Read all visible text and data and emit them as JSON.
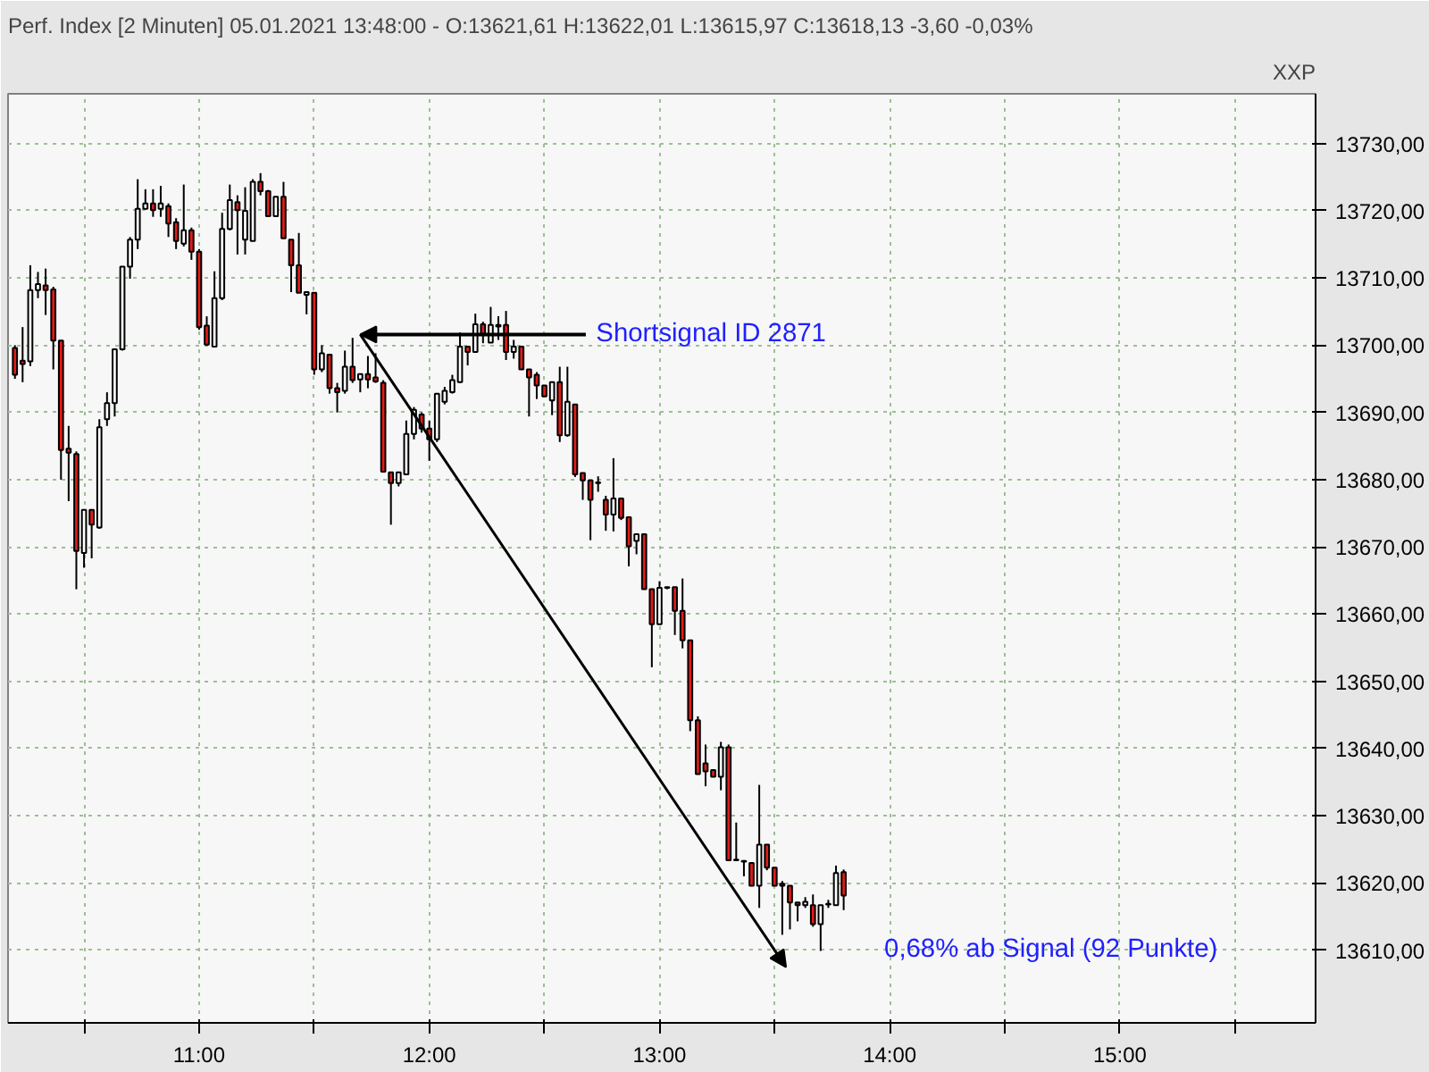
{
  "chart_data": {
    "type": "candlestick",
    "title": "Perf. Index [2 Minuten] 05.01.2021 13:48:00 - O:13621,61 H:13622,01 L:13615,97 C:13618,13 -3,60 -0,03%",
    "ylabel": "XXP",
    "x": [
      10.2,
      10.2333,
      10.2667,
      10.3,
      10.3333,
      10.3667,
      10.4,
      10.4333,
      10.4667,
      10.5,
      10.5333,
      10.5667,
      10.6,
      10.6333,
      10.6667,
      10.7,
      10.7333,
      10.7667,
      10.8,
      10.8333,
      10.8667,
      10.9,
      10.9333,
      10.9667,
      11.0,
      11.0333,
      11.0667,
      11.1,
      11.1333,
      11.1667,
      11.2,
      11.2333,
      11.2667,
      11.3,
      11.3333,
      11.3667,
      11.4,
      11.4333,
      11.4667,
      11.5,
      11.5333,
      11.5667,
      11.6,
      11.6333,
      11.6667,
      11.7,
      11.7333,
      11.7667,
      11.8,
      11.8333,
      11.8667,
      11.9,
      11.9333,
      11.9667,
      12.0,
      12.0333,
      12.0667,
      12.1,
      12.1333,
      12.1667,
      12.2,
      12.2333,
      12.2667,
      12.3,
      12.3333,
      12.3667,
      12.4,
      12.4333,
      12.4667,
      12.5,
      12.5333,
      12.5667,
      12.6,
      12.6333,
      12.6667,
      12.7,
      12.7333,
      12.7667,
      12.8,
      12.8333,
      12.8667,
      12.9,
      12.9333,
      12.9667,
      13.0,
      13.0333,
      13.0667,
      13.1,
      13.1333,
      13.1667,
      13.2,
      13.2333,
      13.2667,
      13.3,
      13.3333,
      13.3667,
      13.4,
      13.4333,
      13.4667,
      13.5,
      13.5333,
      13.5667,
      13.6,
      13.6333,
      13.6667,
      13.7,
      13.7333,
      13.7667,
      13.8
    ],
    "ohlc": [
      [
        13699.6,
        13700.0,
        13695.0,
        13695.6
      ],
      [
        13697.7,
        13702.7,
        13694.5,
        13697.2
      ],
      [
        13697.6,
        13711.9,
        13696.9,
        13708.2
      ],
      [
        13708.2,
        13710.9,
        13707.0,
        13709.1
      ],
      [
        13708.9,
        13711.4,
        13704.5,
        13708.2
      ],
      [
        13708.3,
        13708.7,
        13696.4,
        13700.7
      ],
      [
        13700.7,
        13700.7,
        13680.0,
        13684.4
      ],
      [
        13684.6,
        13688.0,
        13676.8,
        13684.0
      ],
      [
        13683.8,
        13684.2,
        13663.7,
        13669.4
      ],
      [
        13669.1,
        13675.5,
        13666.9,
        13675.5
      ],
      [
        13675.5,
        13675.5,
        13668.3,
        13673.3
      ],
      [
        13672.9,
        13689.0,
        13672.7,
        13687.8
      ],
      [
        13689.0,
        13693.0,
        13688.0,
        13691.4
      ],
      [
        13691.4,
        13699.4,
        13689.4,
        13699.4
      ],
      [
        13699.4,
        13711.7,
        13699.2,
        13711.7
      ],
      [
        13711.7,
        13716.1,
        13709.9,
        13715.7
      ],
      [
        13715.7,
        13724.7,
        13714.3,
        13720.3
      ],
      [
        13720.3,
        13723.2,
        13720.3,
        13721.1
      ],
      [
        13721.1,
        13723.2,
        13719.1,
        13720.1
      ],
      [
        13720.3,
        13723.7,
        13719.1,
        13721.1
      ],
      [
        13720.7,
        13721.1,
        13716.1,
        13718.1
      ],
      [
        13718.3,
        13718.9,
        13714.3,
        13715.5
      ],
      [
        13715.1,
        13723.9,
        13714.7,
        13717.1
      ],
      [
        13717.1,
        13717.5,
        13712.7,
        13713.9
      ],
      [
        13713.9,
        13714.3,
        13702.3,
        13702.7
      ],
      [
        13702.9,
        13704.3,
        13699.9,
        13700.1
      ],
      [
        13699.8,
        13711.0,
        13699.8,
        13707.0
      ],
      [
        13707.0,
        13719.7,
        13706.7,
        13717.3
      ],
      [
        13717.3,
        13723.9,
        13717.1,
        13721.6
      ],
      [
        13721.3,
        13722.3,
        13713.5,
        13720.1
      ],
      [
        13715.7,
        13723.5,
        13713.5,
        13720.0
      ],
      [
        13715.5,
        13724.7,
        13715.5,
        13724.3
      ],
      [
        13724.3,
        13725.6,
        13722.3,
        13722.9
      ],
      [
        13722.9,
        13723.1,
        13719.1,
        13719.2
      ],
      [
        13719.2,
        13722.1,
        13719.1,
        13722.1
      ],
      [
        13722.1,
        13724.3,
        13715.9,
        13715.9
      ],
      [
        13715.7,
        13715.7,
        13707.9,
        13711.9
      ],
      [
        13711.9,
        13716.7,
        13707.8,
        13707.8
      ],
      [
        13707.5,
        13707.9,
        13704.6,
        13707.9
      ],
      [
        13707.8,
        13707.9,
        13695.6,
        13696.4
      ],
      [
        13696.4,
        13700.0,
        13696.0,
        13698.8
      ],
      [
        13698.6,
        13698.6,
        13692.8,
        13693.6
      ],
      [
        13693.6,
        13694.4,
        13690.0,
        13693.0
      ],
      [
        13693.2,
        13699.2,
        13692.8,
        13696.8
      ],
      [
        13696.8,
        13701.1,
        13694.4,
        13694.8
      ],
      [
        13694.9,
        13695.7,
        13693.0,
        13695.7
      ],
      [
        13695.7,
        13698.4,
        13693.6,
        13694.9
      ],
      [
        13695.2,
        13698.8,
        13694.4,
        13694.6
      ],
      [
        13694.4,
        13694.8,
        13681.2,
        13681.2
      ],
      [
        13681.1,
        13681.1,
        13673.3,
        13679.5
      ],
      [
        13679.5,
        13681.1,
        13679.0,
        13681.1
      ],
      [
        13680.8,
        13688.8,
        13680.8,
        13686.8
      ],
      [
        13686.8,
        13690.8,
        13686.0,
        13690.4
      ],
      [
        13689.7,
        13690.0,
        13687.0,
        13687.6
      ],
      [
        13687.6,
        13688.8,
        13682.8,
        13686.0
      ],
      [
        13686.0,
        13692.8,
        13685.6,
        13692.8
      ],
      [
        13691.6,
        13693.8,
        13691.2,
        13693.2
      ],
      [
        13693.0,
        13695.6,
        13692.8,
        13694.8
      ],
      [
        13694.5,
        13701.9,
        13694.4,
        13699.8
      ],
      [
        13699.8,
        13699.8,
        13697.0,
        13699.0
      ],
      [
        13699.0,
        13704.7,
        13699.0,
        13703.1
      ],
      [
        13703.1,
        13703.5,
        13700.3,
        13701.7
      ],
      [
        13700.4,
        13705.7,
        13700.4,
        13703.0
      ],
      [
        13702.8,
        13704.3,
        13700.8,
        13703.0
      ],
      [
        13703.0,
        13705.1,
        13697.8,
        13699.0
      ],
      [
        13699.0,
        13700.8,
        13698.0,
        13699.8
      ],
      [
        13699.8,
        13699.8,
        13696.4,
        13696.4
      ],
      [
        13696.4,
        13696.4,
        13689.4,
        13695.2
      ],
      [
        13695.6,
        13696.0,
        13692.0,
        13694.0
      ],
      [
        13694.0,
        13694.0,
        13692.4,
        13692.4
      ],
      [
        13691.8,
        13694.5,
        13689.6,
        13694.5
      ],
      [
        13694.5,
        13696.8,
        13685.6,
        13686.6
      ],
      [
        13686.6,
        13696.8,
        13686.4,
        13691.6
      ],
      [
        13691.2,
        13691.2,
        13680.4,
        13680.8
      ],
      [
        13681.0,
        13681.0,
        13677.0,
        13679.9
      ],
      [
        13679.9,
        13679.9,
        13671.0,
        13677.0
      ],
      [
        13679.5,
        13680.5,
        13678.2,
        13679.6
      ],
      [
        13677.0,
        13677.6,
        13672.4,
        13674.8
      ],
      [
        13674.8,
        13683.2,
        13672.3,
        13677.2
      ],
      [
        13677.2,
        13677.2,
        13674.0,
        13674.3
      ],
      [
        13674.4,
        13674.4,
        13667.1,
        13670.1
      ],
      [
        13670.9,
        13672.0,
        13668.9,
        13671.9
      ],
      [
        13671.9,
        13672.0,
        13663.7,
        13663.7
      ],
      [
        13663.7,
        13663.7,
        13652.1,
        13658.5
      ],
      [
        13658.5,
        13664.9,
        13658.5,
        13663.9
      ],
      [
        13663.9,
        13664.0,
        13663.7,
        13664.0
      ],
      [
        13664.0,
        13664.0,
        13656.9,
        13660.5
      ],
      [
        13660.5,
        13665.3,
        13654.9,
        13656.1
      ],
      [
        13656.1,
        13656.1,
        13642.6,
        13644.2
      ],
      [
        13644.2,
        13644.8,
        13636.2,
        13636.2
      ],
      [
        13637.8,
        13640.6,
        13634.4,
        13636.6
      ],
      [
        13636.8,
        13636.8,
        13635.8,
        13635.8
      ],
      [
        13635.8,
        13641.0,
        13633.8,
        13640.2
      ],
      [
        13640.2,
        13640.6,
        13623.4,
        13623.4
      ],
      [
        13623.5,
        13629.0,
        13623.4,
        13623.4
      ],
      [
        13623.3,
        13623.4,
        13621.0,
        13623.2
      ],
      [
        13623.0,
        13623.0,
        13619.6,
        13619.6
      ],
      [
        13619.6,
        13634.6,
        13616.3,
        13625.7
      ],
      [
        13625.7,
        13625.7,
        13621.9,
        13622.3
      ],
      [
        13622.3,
        13622.3,
        13619.6,
        13619.6
      ],
      [
        13619.9,
        13620.3,
        13612.3,
        13619.6
      ],
      [
        13619.6,
        13619.6,
        13613.1,
        13617.1
      ],
      [
        13617.1,
        13617.1,
        13614.3,
        13616.7
      ],
      [
        13616.7,
        13617.9,
        13616.3,
        13617.2
      ],
      [
        13616.7,
        13618.3,
        13613.5,
        13613.9
      ],
      [
        13613.9,
        13616.7,
        13609.9,
        13616.7
      ],
      [
        13616.8,
        13617.5,
        13616.3,
        13616.9
      ],
      [
        13616.7,
        13622.6,
        13616.7,
        13621.5
      ],
      [
        13621.61,
        13622.01,
        13615.97,
        13618.13
      ]
    ],
    "colors": [
      "#e41b17",
      "#e41b17",
      "#ffffff",
      "#ffffff",
      "#e41b17",
      "#e41b17",
      "#e41b17",
      "#e41b17",
      "#e41b17",
      "#ffffff",
      "#e41b17",
      "#ffffff",
      "#ffffff",
      "#ffffff",
      "#ffffff",
      "#ffffff",
      "#ffffff",
      "#ffffff",
      "#e41b17",
      "#ffffff",
      "#e41b17",
      "#e41b17",
      "#ffffff",
      "#e41b17",
      "#e41b17",
      "#e41b17",
      "#ffffff",
      "#ffffff",
      "#ffffff",
      "#e41b17",
      "#ffffff",
      "#ffffff",
      "#e41b17",
      "#e41b17",
      "#ffffff",
      "#e41b17",
      "#e41b17",
      "#e41b17",
      "#ffffff",
      "#e41b17",
      "#ffffff",
      "#e41b17",
      "#e41b17",
      "#ffffff",
      "#e41b17",
      "#ffffff",
      "#e41b17",
      "#e41b17",
      "#e41b17",
      "#e41b17",
      "#ffffff",
      "#ffffff",
      "#ffffff",
      "#e41b17",
      "#e41b17",
      "#ffffff",
      "#ffffff",
      "#ffffff",
      "#ffffff",
      "#e41b17",
      "#ffffff",
      "#e41b17",
      "#ffffff",
      "#ffffff",
      "#e41b17",
      "#ffffff",
      "#e41b17",
      "#e41b17",
      "#e41b17",
      "#e41b17",
      "#ffffff",
      "#e41b17",
      "#ffffff",
      "#e41b17",
      "#e41b17",
      "#e41b17",
      "#ffffff",
      "#e41b17",
      "#ffffff",
      "#e41b17",
      "#e41b17",
      "#ffffff",
      "#e41b17",
      "#e41b17",
      "#ffffff",
      "#ffffff",
      "#e41b17",
      "#e41b17",
      "#e41b17",
      "#e41b17",
      "#e41b17",
      "#e41b17",
      "#ffffff",
      "#e41b17",
      "#e41b17",
      "#e41b17",
      "#e41b17",
      "#ffffff",
      "#e41b17",
      "#e41b17",
      "#e41b17",
      "#e41b17",
      "#e41b17",
      "#ffffff",
      "#e41b17",
      "#ffffff",
      "#ffffff",
      "#ffffff",
      "#e41b17"
    ],
    "xlim": [
      10.17,
      15.85
    ],
    "xticks": [
      {
        "value": 10.5,
        "label": null
      },
      {
        "value": 11,
        "label": "11:00"
      },
      {
        "value": 11.5,
        "label": null
      },
      {
        "value": 12,
        "label": "12:00"
      },
      {
        "value": 12.5,
        "label": null
      },
      {
        "value": 13,
        "label": "13:00"
      },
      {
        "value": 13.5,
        "label": null
      },
      {
        "value": 14,
        "label": "14:00"
      },
      {
        "value": 14.5,
        "label": null
      },
      {
        "value": 15,
        "label": "15:00"
      },
      {
        "value": 15.5,
        "label": null
      }
    ],
    "ylim": [
      13599.2,
      13737.4
    ],
    "yticks": [
      {
        "value": 13610,
        "label": "13610,00"
      },
      {
        "value": 13620,
        "label": "13620,00"
      },
      {
        "value": 13630,
        "label": "13630,00"
      },
      {
        "value": 13640,
        "label": "13640,00"
      },
      {
        "value": 13650,
        "label": "13650,00"
      },
      {
        "value": 13660,
        "label": "13660,00"
      },
      {
        "value": 13670,
        "label": "13670,00"
      },
      {
        "value": 13680,
        "label": "13680,00"
      },
      {
        "value": 13690,
        "label": "13690,00"
      },
      {
        "value": 13700,
        "label": "13700,00"
      },
      {
        "value": 13710,
        "label": "13710,00"
      },
      {
        "value": 13720,
        "label": "13720,00"
      },
      {
        "value": 13730,
        "label": "13730,00"
      }
    ],
    "grid": true,
    "annotations": [
      {
        "text": "Shortsignal ID 2871",
        "x": 11.7,
        "y": 13701.6
      },
      "0,68% ab Signal (92 Punkte)"
    ]
  }
}
